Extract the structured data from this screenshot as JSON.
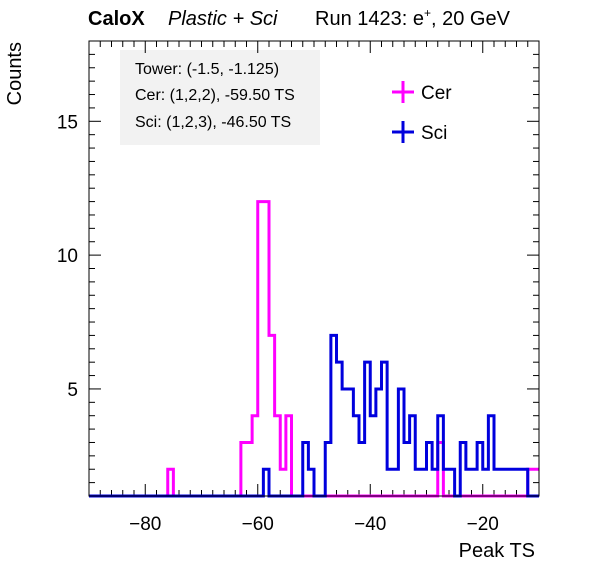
{
  "header": {
    "brand": "CaloX",
    "detector": "Plastic + Sci",
    "run_text": "Run 1423: e",
    "run_sup": "+",
    "run_suffix": ", 20 GeV"
  },
  "info": {
    "tower": "Tower: (-1.5, -1.125)",
    "cer": "Cer: (1,2,2), -59.50 TS",
    "sci": "Sci: (1,2,3), -46.50 TS"
  },
  "chart_data": {
    "type": "histogram",
    "xlabel": "Peak TS",
    "ylabel": "Counts",
    "xlim": [
      -90,
      -10
    ],
    "ylim": [
      1,
      18
    ],
    "bin_width": 1,
    "x_ticks": [
      -80,
      -60,
      -40,
      -20
    ],
    "y_ticks": [
      5,
      10,
      15
    ],
    "legend_placement": "top-right",
    "series": [
      {
        "name": "Cer",
        "color": "#ff00ff",
        "bins": [
          [
            -76,
            2
          ],
          [
            -63,
            3
          ],
          [
            -62,
            3
          ],
          [
            -61,
            4
          ],
          [
            -60,
            12
          ],
          [
            -59,
            12
          ],
          [
            -58,
            7
          ],
          [
            -57,
            4
          ],
          [
            -56,
            2
          ],
          [
            -55,
            4
          ],
          [
            -28,
            3
          ],
          [
            -12,
            2
          ],
          [
            -11,
            2
          ]
        ]
      },
      {
        "name": "Sci",
        "color": "#0000dd",
        "bins": [
          [
            -59,
            2
          ],
          [
            -52,
            3
          ],
          [
            -51,
            2
          ],
          [
            -48,
            3
          ],
          [
            -47,
            7
          ],
          [
            -46,
            6
          ],
          [
            -45,
            5
          ],
          [
            -44,
            5
          ],
          [
            -43,
            4
          ],
          [
            -42,
            3
          ],
          [
            -41,
            6
          ],
          [
            -40,
            4
          ],
          [
            -39,
            5
          ],
          [
            -38,
            6
          ],
          [
            -37,
            2
          ],
          [
            -36,
            2
          ],
          [
            -35,
            5
          ],
          [
            -34,
            3
          ],
          [
            -33,
            4
          ],
          [
            -32,
            2
          ],
          [
            -31,
            2
          ],
          [
            -30,
            3
          ],
          [
            -29,
            2
          ],
          [
            -28,
            4
          ],
          [
            -27,
            2
          ],
          [
            -26,
            2
          ],
          [
            -24,
            3
          ],
          [
            -23,
            2
          ],
          [
            -22,
            2
          ],
          [
            -21,
            3
          ],
          [
            -20,
            2
          ],
          [
            -19,
            4
          ],
          [
            -18,
            2
          ],
          [
            -17,
            2
          ],
          [
            -16,
            2
          ],
          [
            -15,
            2
          ],
          [
            -14,
            2
          ],
          [
            -13,
            2
          ]
        ]
      }
    ]
  }
}
